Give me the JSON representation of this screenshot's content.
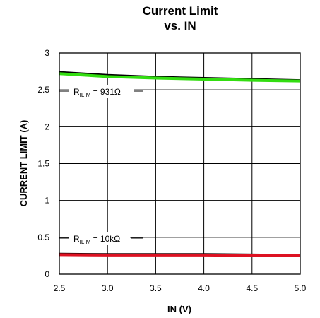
{
  "chart_data": {
    "type": "line",
    "title": "Current Limit",
    "subtitle": "vs. IN",
    "xlabel": "IN (V)",
    "ylabel": "CURRENT LIMIT (A)",
    "xlim": [
      2.5,
      5.0
    ],
    "ylim": [
      0,
      3
    ],
    "xticks": [
      "2.5",
      "3.0",
      "3.5",
      "4.0",
      "4.5",
      "5.0"
    ],
    "yticks": [
      "0",
      "0.5",
      "1",
      "1.5",
      "2",
      "2.5",
      "3"
    ],
    "grid": true,
    "series": [
      {
        "color": "#000000",
        "x": [
          2.5,
          3.0,
          3.5,
          4.0,
          4.5,
          5.0
        ],
        "y": [
          2.74,
          2.7,
          2.675,
          2.66,
          2.645,
          2.63
        ]
      },
      {
        "color": "#33dd11",
        "x": [
          2.5,
          3.0,
          3.5,
          4.0,
          4.5,
          5.0
        ],
        "y": [
          2.72,
          2.68,
          2.66,
          2.645,
          2.63,
          2.62
        ]
      },
      {
        "color": "#000000",
        "x": [
          2.5,
          3.0,
          3.5,
          4.0,
          4.5,
          5.0
        ],
        "y": [
          0.275,
          0.27,
          0.27,
          0.27,
          0.265,
          0.26
        ]
      },
      {
        "color": "#dd1122",
        "x": [
          2.5,
          3.0,
          3.5,
          4.0,
          4.5,
          5.0
        ],
        "y": [
          0.265,
          0.26,
          0.26,
          0.26,
          0.255,
          0.25
        ]
      }
    ],
    "annotations": [
      {
        "prefix": "R",
        "sub": "ILIM",
        "suffix": " = 931Ω"
      },
      {
        "prefix": "R",
        "sub": "ILIM",
        "suffix": " = 10kΩ"
      }
    ]
  }
}
